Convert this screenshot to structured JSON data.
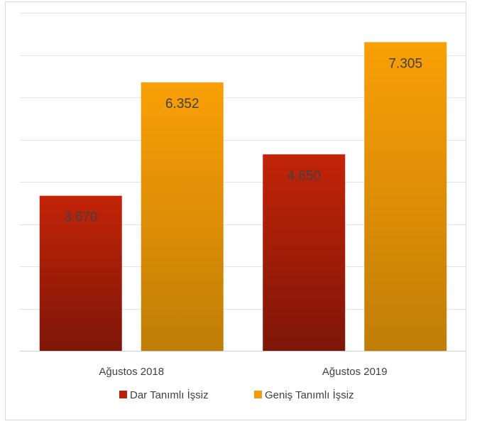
{
  "chart_data": {
    "type": "bar",
    "categories": [
      "Ağustos 2018",
      "Ağustos 2019"
    ],
    "series": [
      {
        "name": "Dar Tanımlı İşsiz",
        "values": [
          3670,
          4650
        ],
        "labels": [
          "3.670",
          "4.650"
        ],
        "color": "#b92205"
      },
      {
        "name": "Geniş Tanımlı İşsiz",
        "values": [
          6352,
          7305
        ],
        "labels": [
          "6.352",
          "7.305"
        ],
        "color": "#f29a07"
      }
    ],
    "ylim": [
      0,
      8000
    ],
    "grid": true,
    "legend_position": "bottom"
  }
}
